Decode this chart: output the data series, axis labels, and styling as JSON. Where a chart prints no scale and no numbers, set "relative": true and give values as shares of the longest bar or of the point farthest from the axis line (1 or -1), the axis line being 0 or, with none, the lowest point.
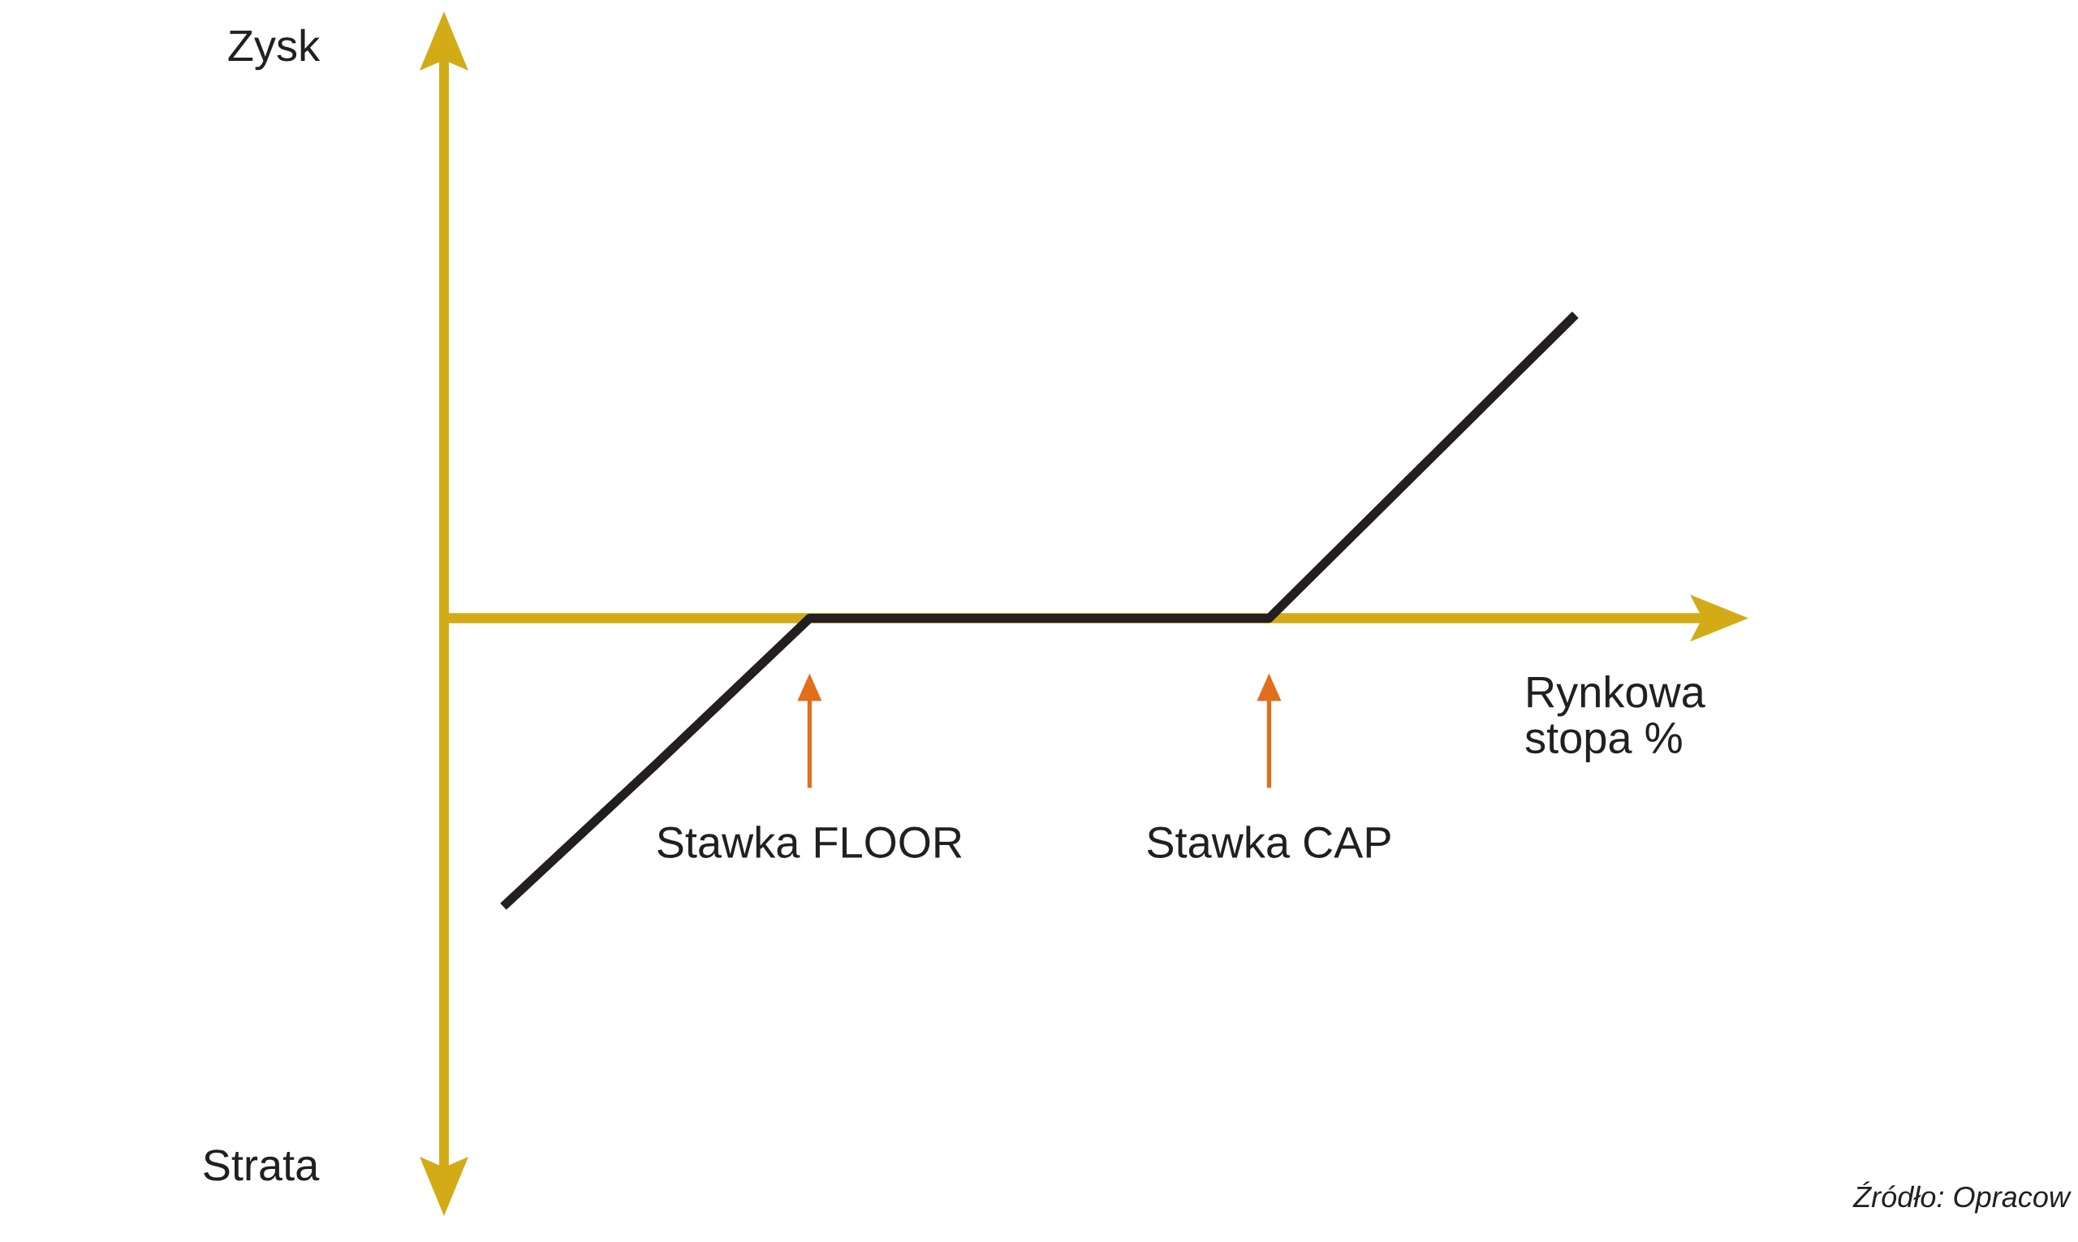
{
  "chart_data": {
    "type": "line",
    "relative": true,
    "categories": [
      null,
      null,
      "Stawka FLOOR",
      null,
      null,
      "Stawka CAP",
      null,
      null
    ],
    "values": [
      -0.95,
      -0.48,
      0,
      0,
      0,
      0,
      0.5,
      1
    ],
    "color": "#231f20",
    "ref_lines": [
      {
        "axis": "y",
        "value": 0,
        "color": "#d3ab17"
      }
    ],
    "xlabel": "Rynkowa\nstopa %",
    "annotations": [
      "Zysk",
      "Strata",
      "Źródło: Opracow"
    ]
  }
}
